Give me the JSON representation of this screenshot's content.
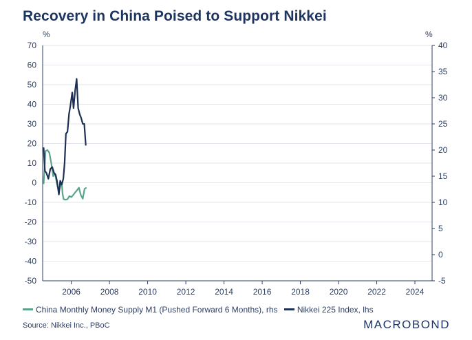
{
  "chart_data": {
    "type": "line",
    "title": "Recovery in China Poised to Support Nikkei",
    "left_axis": {
      "unit": "%",
      "ticks": [
        70,
        60,
        50,
        40,
        30,
        20,
        10,
        0,
        -10,
        -20,
        -30,
        -40,
        -50
      ],
      "range": [
        -50,
        70
      ]
    },
    "right_axis": {
      "unit": "%",
      "ticks": [
        40,
        35,
        30,
        25,
        20,
        15,
        10,
        5,
        0,
        -5
      ],
      "range": [
        -5,
        40
      ]
    },
    "x_axis": {
      "ticks": [
        "2006",
        "2008",
        "2010",
        "2012",
        "2014",
        "2016",
        "2018",
        "2020",
        "2022",
        "2024"
      ],
      "range": [
        2004.5,
        2024.9
      ]
    },
    "series": [
      {
        "name": "China Monthly Money Supply M1 (Pushed Forward 6 Months), rhs",
        "axis": "right",
        "color": "#5aa58a",
        "x": [
          2004.55,
          2004.65,
          2004.75,
          2004.85,
          2004.95,
          2005.05,
          2005.15,
          2005.25,
          2005.35,
          2005.42,
          2005.5,
          2005.55,
          2005.6,
          2005.7,
          2005.8,
          2005.9,
          2006.0,
          2006.1,
          2006.2,
          2006.3,
          2006.4,
          2006.5,
          2006.6,
          2006.7,
          2006.8
        ],
        "values": [
          13.5,
          19.8,
          20.0,
          19.5,
          17.5,
          15.0,
          15.5,
          13.5,
          12.0,
          13.0,
          13.8,
          11.5,
          10.6,
          10.5,
          10.6,
          11.2,
          11.0,
          11.4,
          11.9,
          12.3,
          12.8,
          11.4,
          10.7,
          12.6,
          12.8
        ]
      },
      {
        "name": "Nikkei 225 Index, lhs",
        "axis": "left",
        "color": "#1d2f52",
        "x": [
          2004.55,
          2004.62,
          2004.7,
          2004.8,
          2004.9,
          2005.0,
          2005.1,
          2005.18,
          2005.25,
          2005.35,
          2005.42,
          2005.5,
          2005.58,
          2005.65,
          2005.72,
          2005.8,
          2005.88,
          2005.95,
          2006.05,
          2006.12,
          2006.2,
          2006.28,
          2006.36,
          2006.44,
          2006.52,
          2006.6,
          2006.68,
          2006.76
        ],
        "values": [
          18,
          6,
          5,
          2,
          7,
          8,
          5,
          4,
          1,
          -6,
          1,
          -1,
          2,
          10,
          25,
          26,
          35,
          39,
          46,
          38,
          47,
          53,
          38,
          35,
          33,
          30,
          30,
          19
        ]
      }
    ],
    "legend": [
      "China Monthly Money Supply M1 (Pushed Forward 6 Months), rhs",
      "Nikkei 225 Index, lhs"
    ]
  },
  "source": "Source: Nikkei Inc., PBoC",
  "brand": "MACROBOND"
}
